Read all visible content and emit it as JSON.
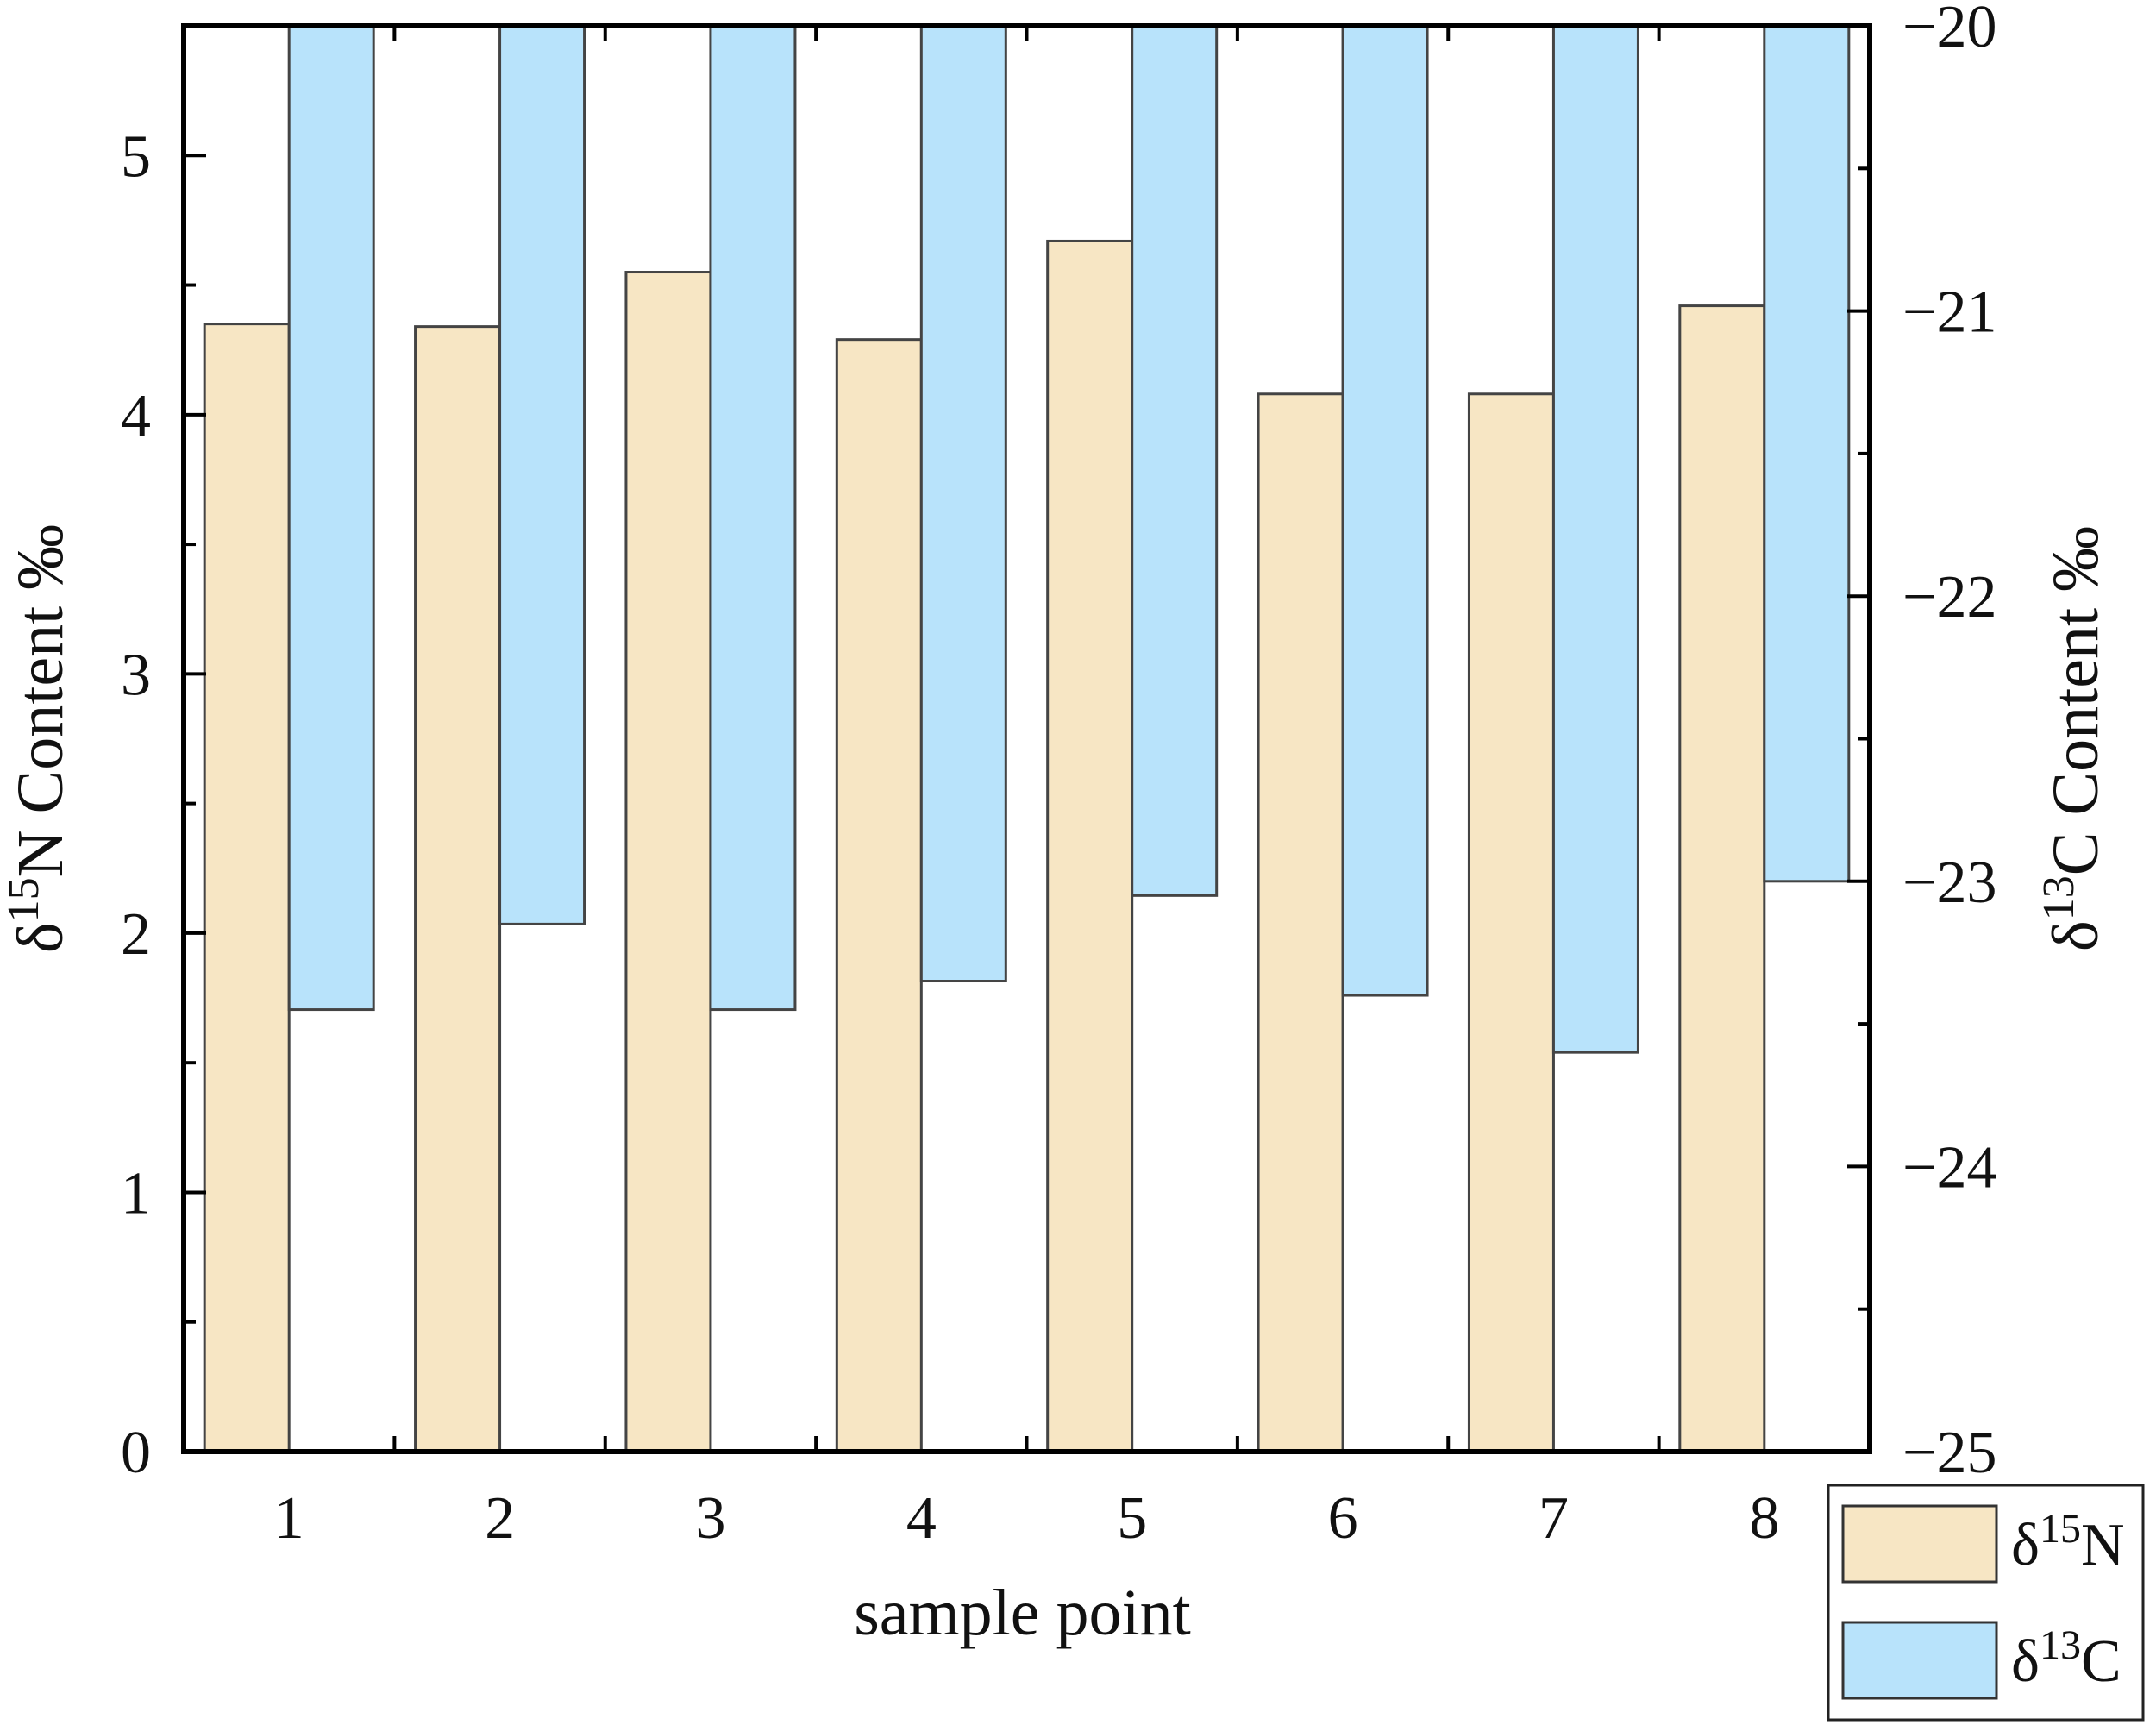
{
  "chart_data": {
    "type": "bar",
    "categories": [
      "1",
      "2",
      "3",
      "4",
      "5",
      "6",
      "7",
      "8"
    ],
    "xlabel": "sample point",
    "ylabel_left": {
      "symbol": "δ",
      "sup": "15",
      "rest": "N Content ‰"
    },
    "ylabel_right": {
      "symbol": "δ",
      "sup": "13",
      "rest": "C Content ‰"
    },
    "left_axis": {
      "ylim": [
        0,
        5.5
      ],
      "ticks": [
        "0",
        "1",
        "2",
        "3",
        "4",
        "5"
      ]
    },
    "right_axis": {
      "ylim": [
        -25,
        -20
      ],
      "ticks": [
        "−25",
        "−24",
        "−23",
        "−22",
        "−21",
        "−20"
      ]
    },
    "series": [
      {
        "legend": {
          "symbol": "δ",
          "sup": "15",
          "rest": "N"
        },
        "axis": "left",
        "color": "#f7e6c4",
        "values": [
          4.35,
          4.34,
          4.55,
          4.29,
          4.67,
          4.08,
          4.08,
          4.42
        ]
      },
      {
        "legend": {
          "symbol": "δ",
          "sup": "13",
          "rest": "C"
        },
        "axis": "right",
        "color": "#b8e3fb",
        "values": [
          -23.45,
          -23.15,
          -23.45,
          -23.35,
          -23.05,
          -23.4,
          -23.6,
          -23.0
        ]
      }
    ],
    "legend_position": "bottom-right, outside plot",
    "grid": false
  }
}
